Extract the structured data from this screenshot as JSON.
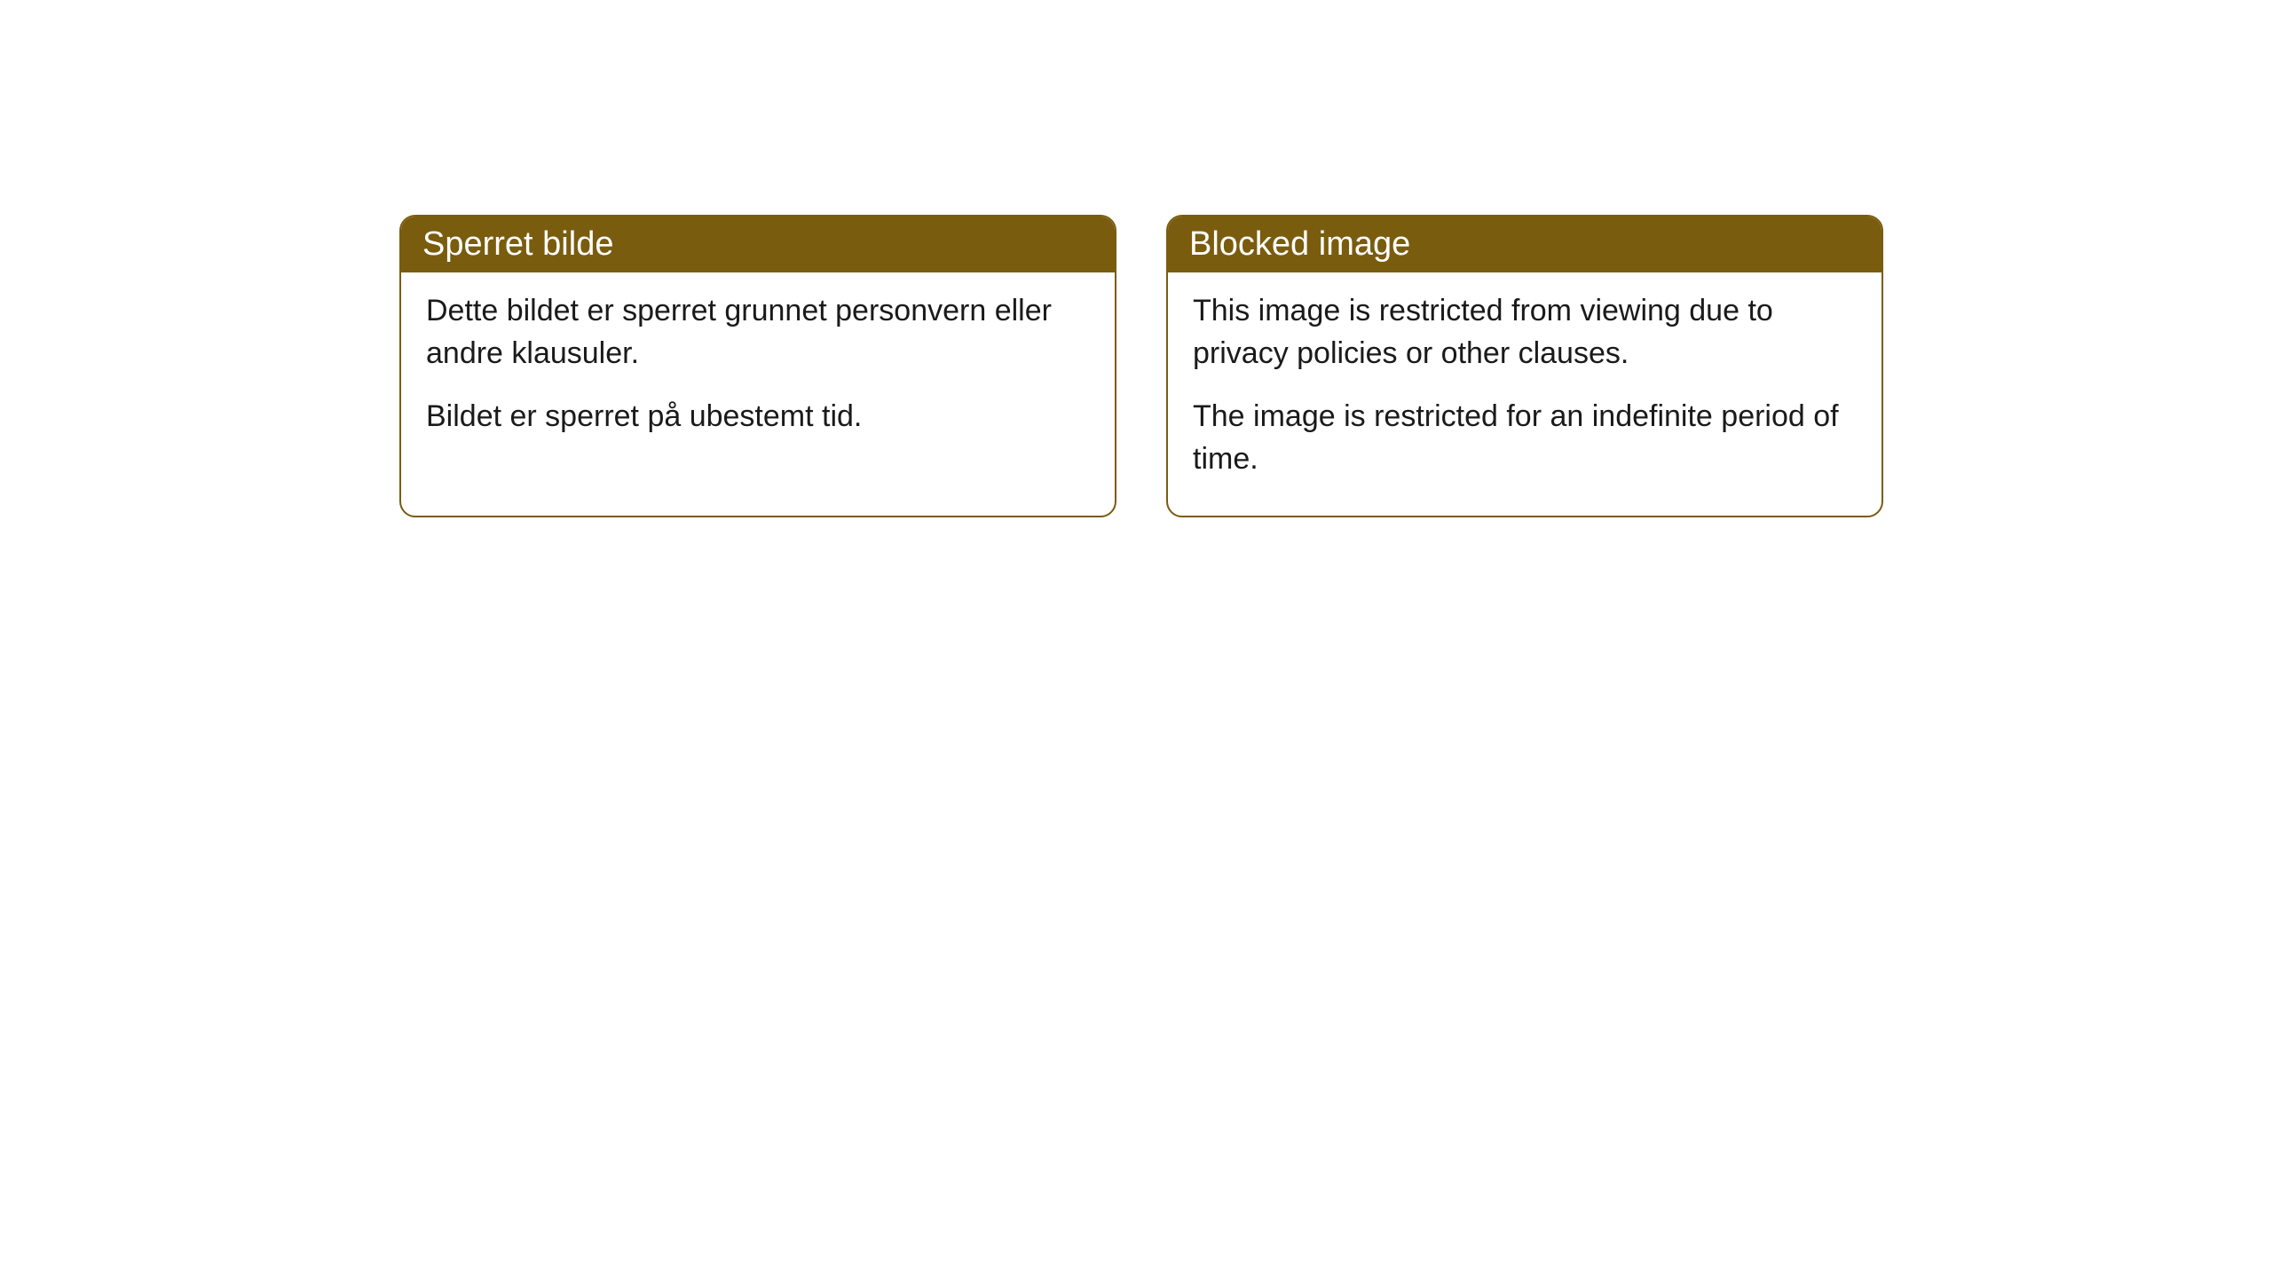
{
  "cards": [
    {
      "title": "Sperret bilde",
      "paragraph1": "Dette bildet er sperret grunnet personvern eller andre klausuler.",
      "paragraph2": "Bildet er sperret på ubestemt tid."
    },
    {
      "title": "Blocked image",
      "paragraph1": "This image is restricted from viewing due to privacy policies or other clauses.",
      "paragraph2": "The image is restricted for an indefinite period of time."
    }
  ],
  "styles": {
    "header_bg_color": "#7a5c0e",
    "header_text_color": "#ffffff",
    "border_color": "#7a5c0e",
    "body_text_color": "#1a1a1a",
    "background_color": "#ffffff",
    "border_radius": "18px",
    "header_fontsize": 38,
    "body_fontsize": 34
  }
}
